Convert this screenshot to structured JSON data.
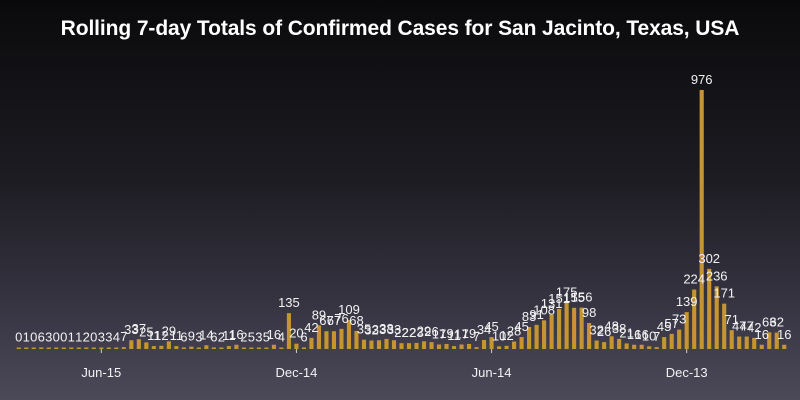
{
  "chart_data": {
    "type": "bar",
    "title": "Rolling 7-day Totals of Confirmed Cases for San Jacinto, Texas, USA",
    "xlabel": "",
    "ylabel": "",
    "ylim": [
      0,
      1000
    ],
    "grid": false,
    "legend": "none",
    "bar_color": "#c69532",
    "x_ticks": [
      {
        "label": "Jun-15",
        "index": 11
      },
      {
        "label": "Dec-14",
        "index": 37
      },
      {
        "label": "Jun-14",
        "index": 63
      },
      {
        "label": "Dec-13",
        "index": 89
      }
    ],
    "values": [
      0,
      1,
      0,
      6,
      3,
      0,
      0,
      1,
      1,
      2,
      0,
      3,
      3,
      4,
      7,
      33,
      37,
      25,
      11,
      12,
      29,
      11,
      6,
      9,
      3,
      14,
      6,
      2,
      11,
      16,
      2,
      5,
      3,
      5,
      16,
      4,
      135,
      20,
      6,
      42,
      89,
      67,
      67,
      76,
      109,
      68,
      35,
      32,
      33,
      38,
      33,
      22,
      22,
      23,
      29,
      26,
      17,
      19,
      11,
      17,
      19,
      7,
      34,
      45,
      10,
      12,
      28,
      45,
      83,
      91,
      108,
      131,
      151,
      175,
      155,
      156,
      98,
      32,
      26,
      48,
      38,
      21,
      16,
      16,
      10,
      7,
      45,
      57,
      73,
      139,
      224,
      976,
      302,
      236,
      171,
      71,
      47,
      47,
      42,
      16,
      63,
      62,
      16
    ]
  }
}
